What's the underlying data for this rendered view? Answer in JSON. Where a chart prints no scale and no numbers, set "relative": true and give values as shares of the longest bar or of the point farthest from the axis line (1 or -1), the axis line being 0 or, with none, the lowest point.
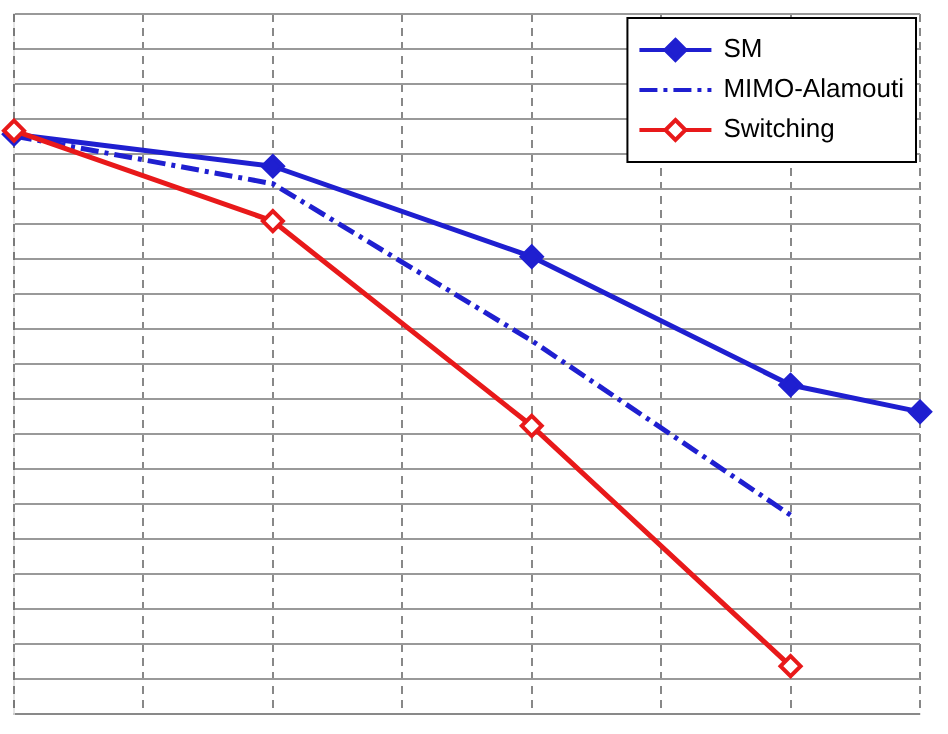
{
  "chart_data": {
    "type": "line",
    "relative": true,
    "categories": [
      null,
      null,
      null,
      null,
      null,
      null,
      null,
      null
    ],
    "series": [
      {
        "name": "SM",
        "color": "#1f1fd0",
        "marker": "diamond",
        "line_style": "solid",
        "values": [
          0.994,
          null,
          0.939,
          null,
          0.784,
          null,
          0.564,
          0.518
        ]
      },
      {
        "name": "MIMO-Alamouti",
        "color": "#1f1fd0",
        "marker": "none",
        "line_style": "dashed",
        "values": [
          0.991,
          null,
          0.909,
          null,
          0.64,
          null,
          0.341,
          null
        ]
      },
      {
        "name": "Switching",
        "color": "#e8191a",
        "marker": "diamond",
        "line_style": "solid",
        "values": [
          1,
          null,
          0.845,
          null,
          0.494,
          null,
          0.082,
          null
        ]
      }
    ],
    "grid": true,
    "legend": "top right",
    "tick_labels": false
  }
}
